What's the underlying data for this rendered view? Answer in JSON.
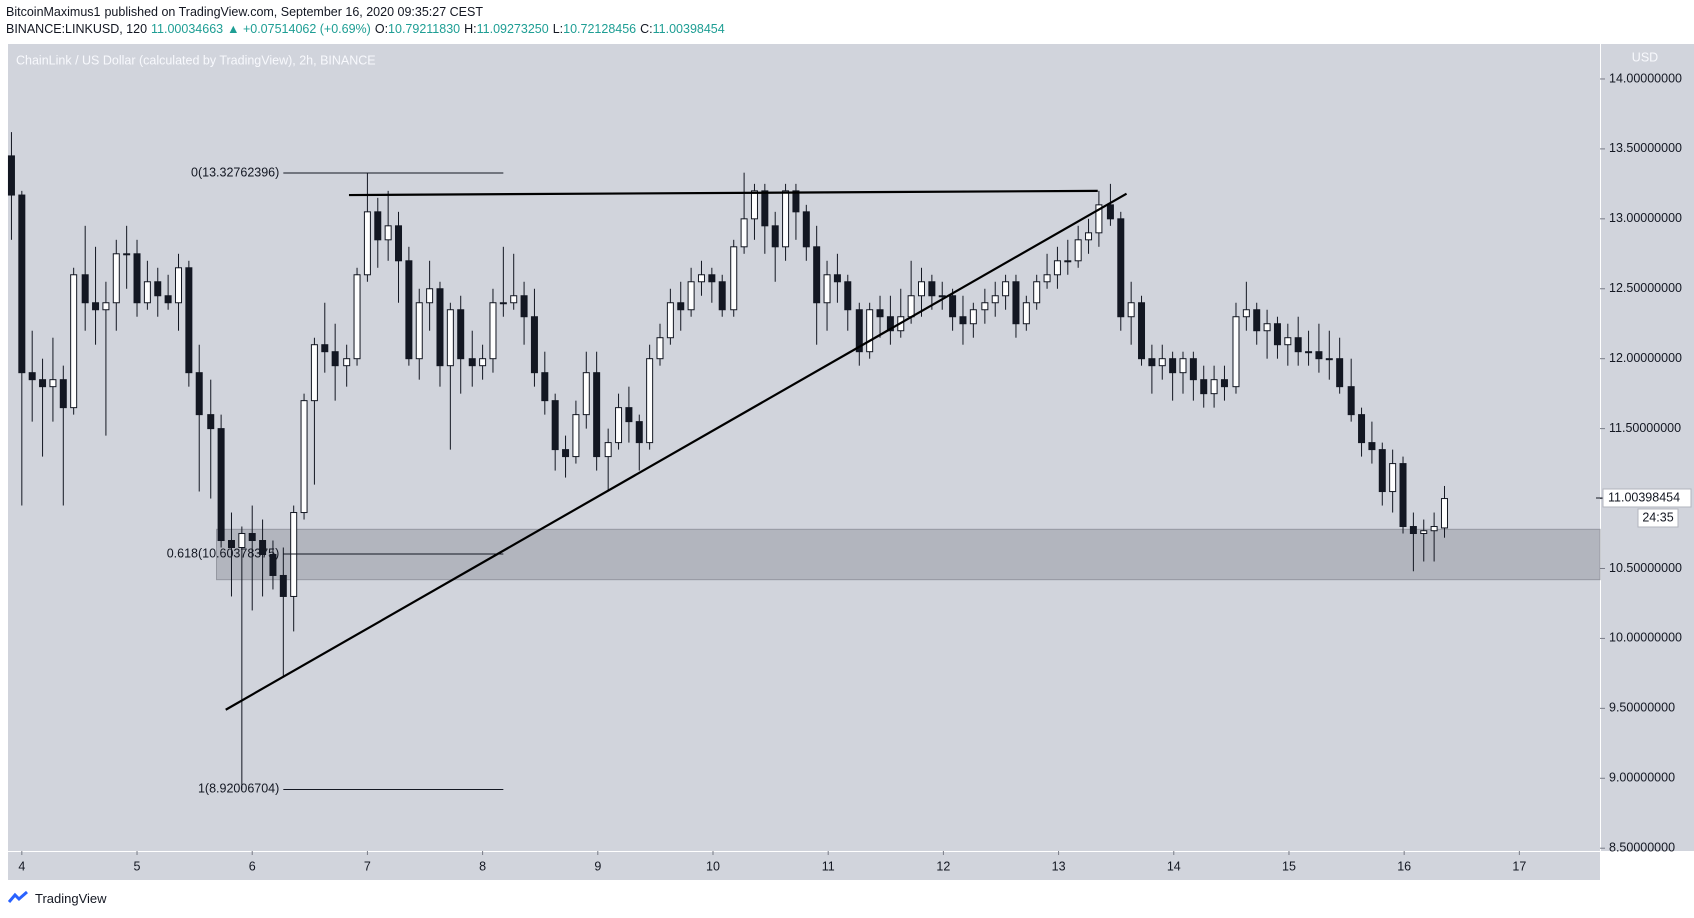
{
  "header": {
    "author": "BitcoinMaximus1",
    "published": "published on TradingView.com, September 16, 2020 09:35:27 CEST",
    "symbol": "BINANCE:LINKUSD, 120",
    "last": "11.00034663",
    "change": "▲ +0.07514062 (+0.69%)",
    "ohlc": [
      {
        "label": "O:",
        "value": "10.79211830"
      },
      {
        "label": "H:",
        "value": "11.09273250"
      },
      {
        "label": "L:",
        "value": "10.72128456"
      },
      {
        "label": "C:",
        "value": "11.00398454"
      }
    ]
  },
  "footer": {
    "brand": "TradingView"
  },
  "chart_data": {
    "type": "candlestick",
    "title": "ChainLink / US Dollar (calculated by TradingView), 2h, BINANCE",
    "y_unit": "USD",
    "x": [
      3.91,
      4.0,
      4.09,
      4.18,
      4.27,
      4.36,
      4.45,
      4.55,
      4.64,
      4.73,
      4.82,
      4.91,
      5.0,
      5.09,
      5.18,
      5.27,
      5.36,
      5.45,
      5.54,
      5.64,
      5.73,
      5.82,
      5.91,
      6.0,
      6.09,
      6.18,
      6.27,
      6.36,
      6.45,
      6.54,
      6.63,
      6.72,
      6.82,
      6.91,
      7.0,
      7.09,
      7.18,
      7.27,
      7.36,
      7.45,
      7.54,
      7.63,
      7.72,
      7.81,
      7.91,
      8.0,
      8.09,
      8.18,
      8.27,
      8.36,
      8.45,
      8.54,
      8.63,
      8.72,
      8.81,
      8.9,
      8.99,
      9.09,
      9.18,
      9.27,
      9.36,
      9.45,
      9.54,
      9.63,
      9.72,
      9.81,
      9.9,
      9.99,
      10.08,
      10.18,
      10.27,
      10.36,
      10.45,
      10.54,
      10.63,
      10.72,
      10.81,
      10.9,
      10.99,
      11.08,
      11.17,
      11.27,
      11.36,
      11.45,
      11.54,
      11.63,
      11.72,
      11.81,
      11.9,
      11.99,
      12.08,
      12.17,
      12.26,
      12.36,
      12.45,
      12.54,
      12.63,
      12.72,
      12.81,
      12.9,
      12.99,
      13.08,
      13.17,
      13.26,
      13.35,
      13.45,
      13.54,
      13.63,
      13.72,
      13.81,
      13.9,
      13.99,
      14.08,
      14.17,
      14.26,
      14.35,
      14.44,
      14.54,
      14.63,
      14.72,
      14.81,
      14.9,
      14.99,
      15.08,
      15.17,
      15.26,
      15.35,
      15.44,
      15.54,
      15.63,
      15.72,
      15.81,
      15.9,
      15.99,
      16.08,
      16.17,
      16.26,
      16.35
    ],
    "open": [
      13.45,
      13.17,
      11.9,
      11.85,
      11.8,
      11.85,
      11.65,
      12.6,
      12.4,
      12.35,
      12.4,
      12.75,
      12.75,
      12.4,
      12.55,
      12.45,
      12.4,
      12.65,
      11.9,
      11.6,
      11.5,
      10.7,
      10.65,
      10.75,
      10.7,
      10.6,
      10.45,
      10.3,
      10.9,
      11.7,
      12.1,
      12.05,
      11.95,
      12.0,
      12.6,
      13.05,
      12.85,
      12.95,
      12.7,
      12.0,
      12.4,
      12.5,
      11.95,
      12.35,
      12.0,
      11.95,
      12.0,
      12.4,
      12.4,
      12.45,
      12.3,
      11.9,
      11.7,
      11.35,
      11.3,
      11.6,
      11.9,
      11.3,
      11.4,
      11.65,
      11.55,
      11.4,
      12.0,
      12.15,
      12.4,
      12.35,
      12.55,
      12.6,
      12.55,
      12.35,
      12.8,
      13.0,
      13.2,
      12.95,
      12.8,
      13.2,
      13.05,
      12.8,
      12.4,
      12.6,
      12.55,
      12.35,
      12.05,
      12.35,
      12.3,
      12.2,
      12.3,
      12.45,
      12.55,
      12.45,
      12.45,
      12.3,
      12.25,
      12.35,
      12.4,
      12.45,
      12.55,
      12.25,
      12.4,
      12.55,
      12.6,
      12.7,
      12.7,
      12.85,
      12.9,
      13.1,
      13.0,
      12.3,
      12.4,
      12.0,
      11.95,
      12.0,
      11.9,
      12.0,
      11.85,
      11.75,
      11.85,
      11.8,
      12.3,
      12.35,
      12.2,
      12.25,
      12.1,
      12.15,
      12.05,
      12.05,
      12.0,
      12.0,
      11.8,
      11.6,
      11.4,
      11.35,
      11.05,
      11.25,
      10.8,
      10.75,
      10.77,
      10.79
    ],
    "high": [
      13.62,
      13.2,
      12.2,
      12.0,
      12.15,
      11.95,
      12.65,
      12.95,
      12.8,
      12.55,
      12.85,
      12.95,
      12.85,
      12.7,
      12.65,
      12.6,
      12.75,
      12.7,
      12.1,
      11.85,
      11.6,
      10.9,
      10.8,
      10.95,
      10.85,
      10.7,
      10.65,
      10.95,
      11.75,
      12.15,
      12.4,
      12.25,
      12.1,
      12.65,
      13.33,
      13.15,
      13.2,
      13.05,
      12.8,
      12.5,
      12.7,
      12.55,
      12.4,
      12.45,
      12.2,
      12.1,
      12.5,
      12.8,
      12.75,
      12.55,
      12.5,
      12.05,
      11.75,
      11.45,
      11.7,
      12.05,
      12.05,
      11.5,
      11.75,
      11.8,
      11.6,
      12.1,
      12.25,
      12.5,
      12.55,
      12.65,
      12.7,
      12.65,
      12.6,
      12.85,
      13.33,
      13.25,
      13.25,
      13.05,
      13.25,
      13.25,
      13.1,
      12.95,
      12.7,
      12.75,
      12.6,
      12.4,
      12.4,
      12.45,
      12.45,
      12.5,
      12.7,
      12.65,
      12.6,
      12.55,
      12.5,
      12.45,
      12.4,
      12.5,
      12.55,
      12.6,
      12.6,
      12.45,
      12.6,
      12.75,
      12.8,
      12.85,
      12.95,
      13.0,
      13.2,
      13.25,
      13.05,
      12.55,
      12.45,
      12.1,
      12.1,
      12.05,
      12.05,
      12.05,
      11.95,
      11.95,
      11.95,
      12.4,
      12.55,
      12.4,
      12.35,
      12.3,
      12.25,
      12.3,
      12.2,
      12.25,
      12.2,
      12.15,
      12.0,
      11.65,
      11.55,
      11.4,
      11.35,
      11.3,
      10.9,
      10.85,
      10.9,
      11.09
    ],
    "low": [
      12.85,
      10.95,
      11.55,
      11.3,
      11.55,
      10.95,
      11.6,
      12.2,
      12.1,
      11.45,
      12.2,
      12.5,
      12.3,
      12.35,
      12.3,
      12.35,
      12.2,
      11.8,
      11.05,
      11.0,
      10.65,
      10.3,
      8.92,
      10.2,
      10.3,
      10.35,
      9.72,
      10.05,
      10.85,
      11.1,
      11.9,
      11.7,
      11.8,
      11.95,
      12.55,
      12.65,
      12.7,
      12.4,
      11.95,
      11.85,
      12.2,
      11.8,
      11.35,
      11.75,
      11.8,
      11.85,
      11.9,
      12.3,
      12.35,
      12.1,
      11.8,
      11.6,
      11.2,
      11.15,
      11.25,
      11.5,
      11.2,
      11.05,
      11.35,
      11.4,
      11.2,
      11.35,
      11.95,
      12.1,
      12.2,
      12.3,
      12.45,
      12.4,
      12.3,
      12.3,
      12.75,
      12.85,
      12.75,
      12.55,
      12.7,
      12.85,
      12.7,
      12.1,
      12.2,
      12.4,
      12.2,
      11.95,
      12.0,
      12.15,
      12.1,
      12.15,
      12.25,
      12.3,
      12.35,
      12.35,
      12.2,
      12.1,
      12.15,
      12.25,
      12.3,
      12.35,
      12.15,
      12.2,
      12.35,
      12.5,
      12.5,
      12.6,
      12.65,
      12.75,
      12.8,
      12.95,
      12.2,
      12.1,
      11.95,
      11.75,
      11.85,
      11.7,
      11.75,
      11.7,
      11.65,
      11.65,
      11.7,
      11.75,
      12.2,
      12.1,
      12.0,
      12.0,
      11.95,
      11.95,
      11.95,
      11.9,
      11.85,
      11.75,
      11.55,
      11.3,
      11.25,
      10.95,
      10.9,
      10.75,
      10.48,
      10.55,
      10.55,
      10.72
    ],
    "close": [
      13.17,
      11.9,
      11.85,
      11.8,
      11.85,
      11.65,
      12.6,
      12.4,
      12.35,
      12.4,
      12.75,
      12.75,
      12.4,
      12.55,
      12.45,
      12.4,
      12.65,
      11.9,
      11.6,
      11.5,
      10.7,
      10.65,
      10.75,
      10.7,
      10.6,
      10.45,
      10.3,
      10.9,
      11.7,
      12.1,
      12.05,
      11.95,
      12.0,
      12.6,
      13.05,
      12.85,
      12.95,
      12.7,
      12.0,
      12.4,
      12.5,
      11.95,
      12.35,
      12.0,
      11.95,
      12.0,
      12.4,
      12.4,
      12.45,
      12.3,
      11.9,
      11.7,
      11.35,
      11.3,
      11.6,
      11.9,
      11.3,
      11.4,
      11.65,
      11.55,
      11.4,
      12.0,
      12.15,
      12.4,
      12.35,
      12.55,
      12.6,
      12.55,
      12.35,
      12.8,
      13.0,
      13.2,
      12.95,
      12.8,
      13.2,
      13.05,
      12.8,
      12.4,
      12.6,
      12.55,
      12.35,
      12.05,
      12.35,
      12.3,
      12.2,
      12.3,
      12.45,
      12.55,
      12.45,
      12.45,
      12.3,
      12.25,
      12.35,
      12.4,
      12.45,
      12.55,
      12.25,
      12.4,
      12.55,
      12.6,
      12.7,
      12.7,
      12.85,
      12.9,
      13.1,
      13.0,
      12.3,
      12.4,
      12.0,
      11.95,
      12.0,
      11.9,
      12.0,
      11.85,
      11.75,
      11.85,
      11.8,
      12.3,
      12.35,
      12.2,
      12.25,
      12.1,
      12.15,
      12.05,
      12.05,
      12.0,
      12.0,
      11.8,
      11.6,
      11.4,
      11.35,
      11.05,
      11.25,
      10.8,
      10.75,
      10.77,
      10.8,
      11.0
    ],
    "up_color": "#ffffff",
    "down_color": "#131722",
    "xlim": [
      3.88,
      17.7
    ],
    "ylim": [
      8.48,
      14.25
    ],
    "xticks": [
      4,
      5,
      6,
      7,
      8,
      9,
      10,
      11,
      12,
      13,
      14,
      15,
      16,
      17
    ],
    "yticks": [
      {
        "value": 8.5,
        "label": "8.50000000"
      },
      {
        "value": 9,
        "label": "9.00000000"
      },
      {
        "value": 9.5,
        "label": "9.50000000"
      },
      {
        "value": 10,
        "label": "10.00000000"
      },
      {
        "value": 10.5,
        "label": "10.50000000"
      },
      {
        "value": 11,
        "label": "11.00000000"
      },
      {
        "value": 11.5,
        "label": "11.50000000"
      },
      {
        "value": 12,
        "label": "12.00000000"
      },
      {
        "value": 12.5,
        "label": "12.50000000"
      },
      {
        "value": 13,
        "label": "13.00000000"
      },
      {
        "value": 13.5,
        "label": "13.50000000"
      },
      {
        "value": 14,
        "label": "14.00000000"
      }
    ],
    "last_price": {
      "value": 11.00398454,
      "label": "11.00398454",
      "countdown": "24:35"
    },
    "fib_levels": [
      {
        "value": 13.32762396,
        "label": "0(13.32762396)"
      },
      {
        "value": 10.60378375,
        "label": "0.618(10.60378375)"
      },
      {
        "value": 8.92006704,
        "label": "1(8.92006704)"
      }
    ],
    "fib_x": [
      6.27,
      8.18
    ],
    "zone": {
      "x": [
        5.69,
        17.7
      ],
      "y": [
        10.42,
        10.78
      ]
    },
    "trendlines": [
      {
        "x": [
          6.84,
          13.34
        ],
        "y": [
          13.17,
          13.2
        ]
      },
      {
        "x": [
          5.77,
          13.59
        ],
        "y": [
          9.49,
          13.18
        ]
      }
    ]
  }
}
